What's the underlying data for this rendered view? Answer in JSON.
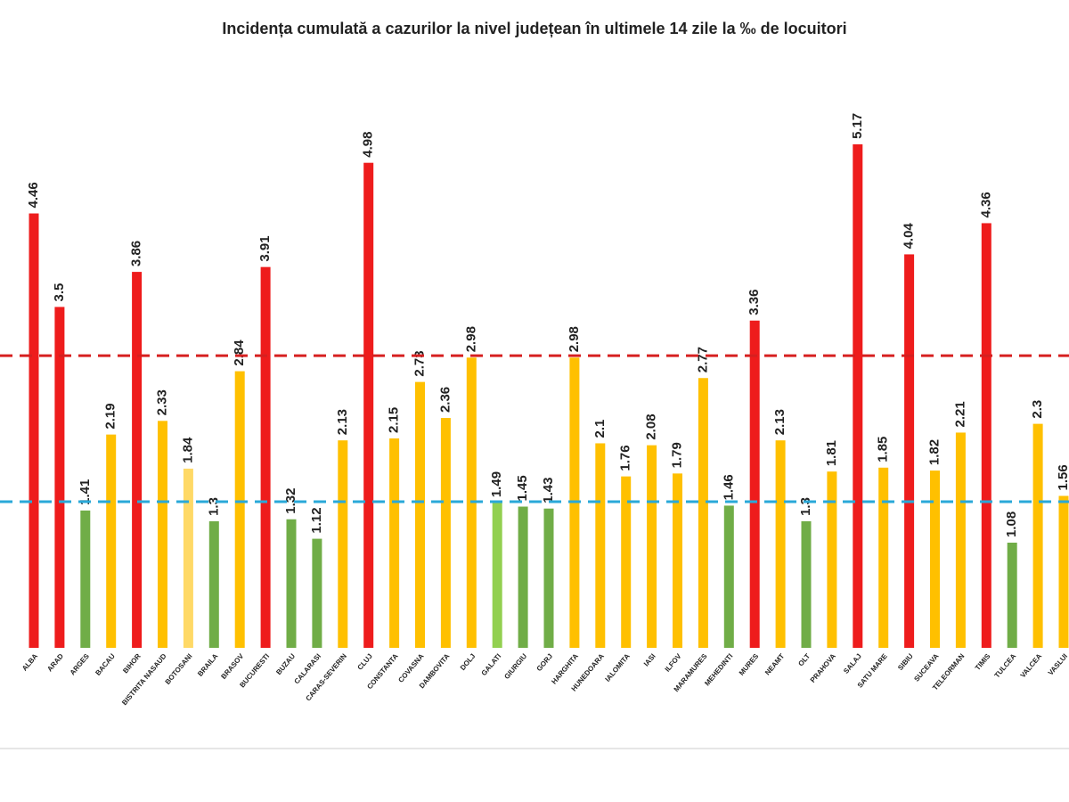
{
  "chart_data": {
    "type": "bar",
    "title": "Incidența cumulată a cazurilor la nivel județean în ultimele 14 zile la ‰ de locuitori",
    "categories": [
      "ALBA",
      "ARAD",
      "ARGES",
      "BACAU",
      "BIHOR",
      "BISTRITA NASAUD",
      "BOTOSANI",
      "BRAILA",
      "BRASOV",
      "BUCURESTI",
      "BUZAU",
      "CALARASI",
      "CARAS-SEVERIN",
      "CLUJ",
      "CONSTANTA",
      "COVASNA",
      "DAMBOVITA",
      "DOLJ",
      "GALATI",
      "GIURGIU",
      "GORJ",
      "HARGHITA",
      "HUNEDOARA",
      "IALOMITA",
      "IASI",
      "ILFOV",
      "MARAMURES",
      "MEHEDINTI",
      "MURES",
      "NEAMT",
      "OLT",
      "PRAHOVA",
      "SALAJ",
      "SATU MARE",
      "SIBIU",
      "SUCEAVA",
      "TELEORMAN",
      "TIMIS",
      "TULCEA",
      "VALCEA",
      "VASLUI"
    ],
    "values": [
      4.46,
      3.5,
      1.41,
      2.19,
      3.86,
      2.33,
      1.84,
      1.3,
      2.84,
      3.91,
      1.32,
      1.12,
      2.13,
      4.98,
      2.15,
      2.73,
      2.36,
      2.98,
      1.49,
      1.45,
      1.43,
      2.98,
      2.1,
      1.76,
      2.08,
      1.79,
      2.77,
      1.46,
      3.36,
      2.13,
      1.3,
      1.81,
      5.17,
      1.85,
      4.04,
      1.82,
      2.21,
      4.36,
      1.08,
      2.3,
      1.56
    ],
    "colors": [
      "#ee1c1c",
      "#ee1c1c",
      "#70ad47",
      "#ffc000",
      "#ee1c1c",
      "#ffc000",
      "#ffd966",
      "#70ad47",
      "#ffc000",
      "#ee1c1c",
      "#70ad47",
      "#70ad47",
      "#ffc000",
      "#ee1c1c",
      "#ffc000",
      "#ffc000",
      "#ffc000",
      "#ffc000",
      "#92d050",
      "#70ad47",
      "#70ad47",
      "#ffc000",
      "#ffc000",
      "#ffc000",
      "#ffc000",
      "#ffc000",
      "#ffc000",
      "#70ad47",
      "#ee1c1c",
      "#ffc000",
      "#70ad47",
      "#ffc000",
      "#ee1c1c",
      "#ffc000",
      "#ee1c1c",
      "#ffc000",
      "#ffc000",
      "#ee1c1c",
      "#70ad47",
      "#ffc000",
      "#ffc000"
    ],
    "ylim": [
      0,
      6
    ],
    "thresholds": [
      {
        "value": 3,
        "color": "#d62020"
      },
      {
        "value": 1.5,
        "color": "#2aa8d8"
      }
    ]
  }
}
